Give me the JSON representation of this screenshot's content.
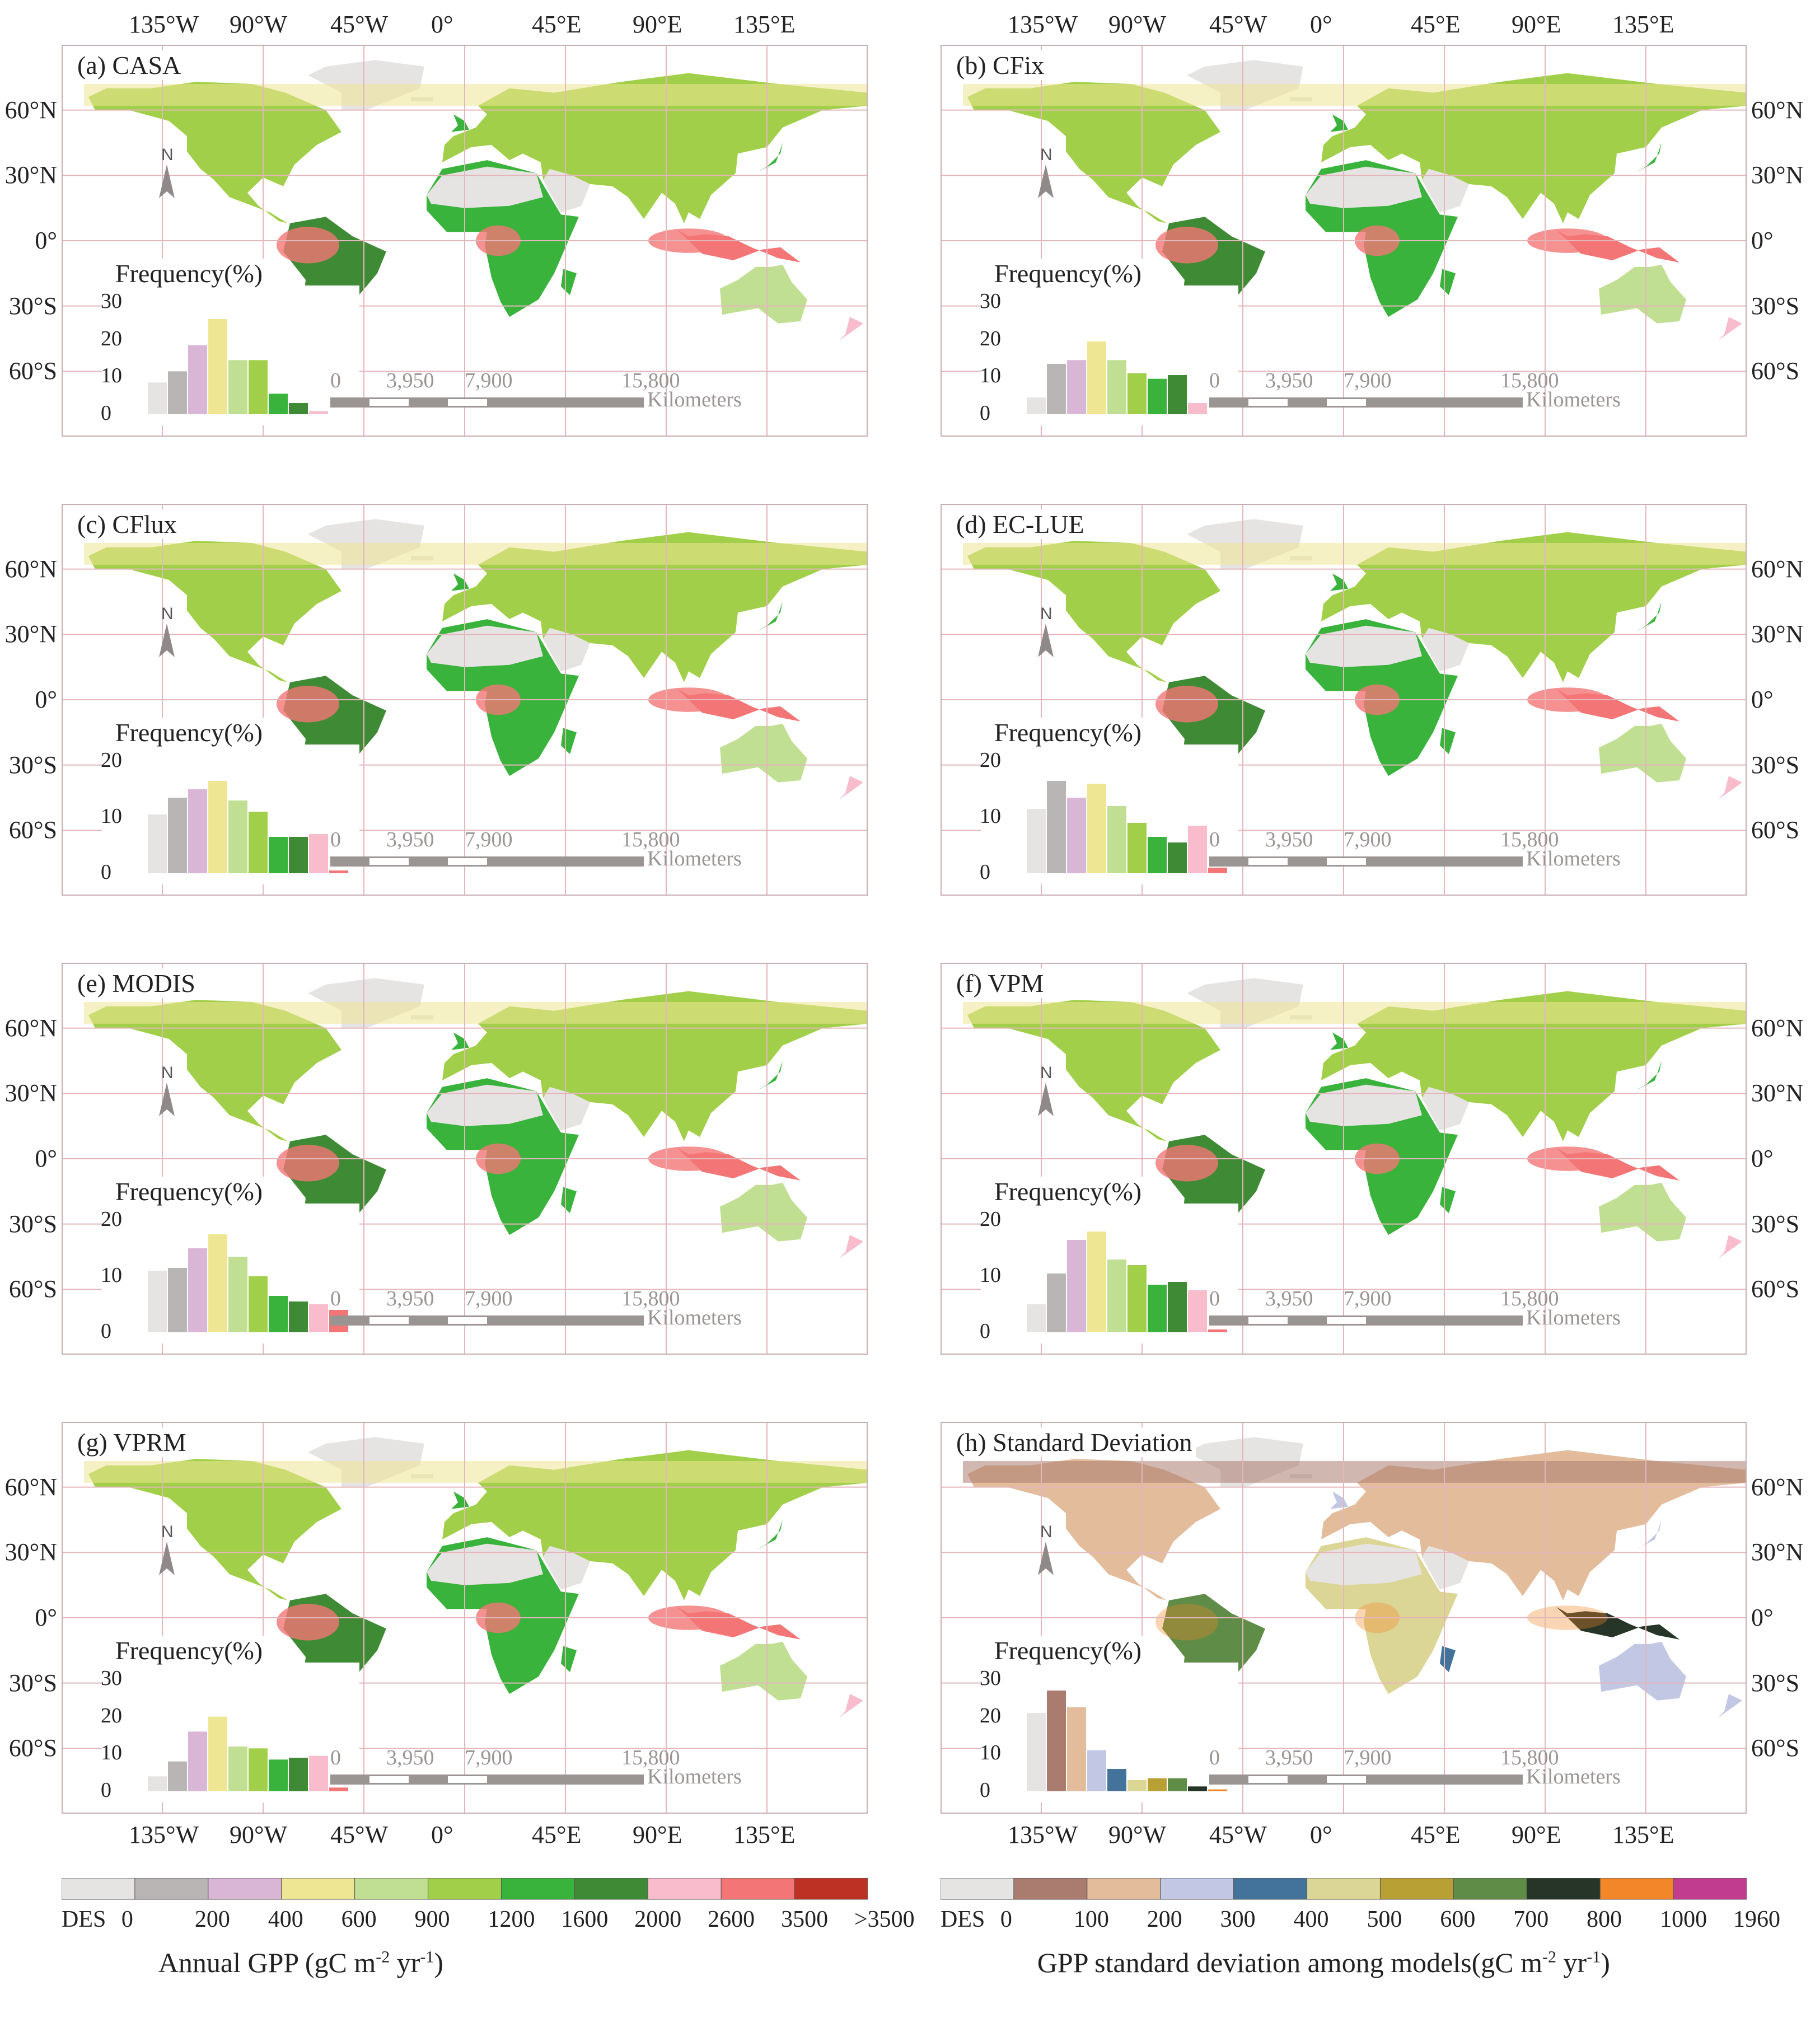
{
  "panels": [
    {
      "title": "(a) CASA",
      "side": "left",
      "freq_ticks": [
        "30",
        "20",
        "10",
        "0"
      ],
      "freq_max": 30,
      "freq": [
        8.5,
        11.5,
        18.5,
        25.5,
        14.5,
        14.5,
        5.5,
        3.0,
        0.8,
        0,
        0
      ],
      "color_scale": "gpp"
    },
    {
      "title": "(b) CFix",
      "side": "right",
      "freq_ticks": [
        "30",
        "20",
        "10",
        "0"
      ],
      "freq_max": 30,
      "freq": [
        4.5,
        13.5,
        14.5,
        19.5,
        14.5,
        11.0,
        9.5,
        10.5,
        3.0,
        0,
        0
      ],
      "color_scale": "gpp"
    },
    {
      "title": "(c) CFlux",
      "side": "left",
      "freq_ticks": [
        "20",
        "10",
        "0"
      ],
      "freq_max": 20,
      "freq": [
        10.5,
        13.5,
        15.0,
        16.5,
        13.0,
        11.0,
        6.5,
        6.5,
        7.0,
        0.5,
        0
      ],
      "color_scale": "gpp"
    },
    {
      "title": "(d) EC-LUE",
      "side": "right",
      "freq_ticks": [
        "20",
        "10",
        "0"
      ],
      "freq_max": 20,
      "freq": [
        11.5,
        16.5,
        13.5,
        16.0,
        12.0,
        9.0,
        6.5,
        5.5,
        8.5,
        1.0,
        0
      ],
      "color_scale": "gpp"
    },
    {
      "title": "(e) MODIS",
      "side": "left",
      "freq_ticks": [
        "20",
        "10",
        "0"
      ],
      "freq_max": 20,
      "freq": [
        11.0,
        11.5,
        15.0,
        17.5,
        13.5,
        10.0,
        6.5,
        5.5,
        5.0,
        4.0,
        0
      ],
      "color_scale": "gpp"
    },
    {
      "title": "(f) VPM",
      "side": "right",
      "freq_ticks": [
        "20",
        "10",
        "0"
      ],
      "freq_max": 20,
      "freq": [
        5.0,
        10.5,
        16.5,
        18.0,
        13.0,
        12.0,
        8.5,
        9.0,
        7.5,
        0.5,
        0
      ],
      "color_scale": "gpp"
    },
    {
      "title": "(g) VPRM",
      "side": "left",
      "freq_ticks": [
        "30",
        "20",
        "10",
        "0"
      ],
      "freq_max": 30,
      "freq": [
        4.0,
        8.0,
        16.0,
        20.0,
        12.0,
        11.5,
        8.5,
        9.0,
        9.5,
        1.0,
        0
      ],
      "color_scale": "gpp"
    },
    {
      "title": "(h) Standard Deviation",
      "side": "right",
      "freq_ticks": [
        "30",
        "20",
        "10",
        "0"
      ],
      "freq_max": 30,
      "freq": [
        21,
        27,
        22.5,
        11,
        6,
        3,
        3.5,
        3.5,
        1.3,
        0.5,
        0
      ],
      "color_scale": "sd"
    }
  ],
  "lat_labels": [
    "60°N",
    "30°N",
    "0°",
    "30°S",
    "60°S"
  ],
  "lon_labels_left": [
    "135°W",
    "90°W",
    "45°W",
    "0°",
    "45°E",
    "90°E",
    "135°E"
  ],
  "lon_labels_right": [
    "135°W",
    "90°W",
    "45°W",
    "0°",
    "45°E",
    "90°E",
    "135°E"
  ],
  "frequency_title": "Frequency(%)",
  "north_arrow_label": "N",
  "scale_bar": {
    "labels": [
      "0",
      "3,950",
      "7,900",
      "15,800"
    ],
    "unit": "Kilometers"
  },
  "colors": {
    "gpp": [
      "#e6e3e3",
      "#b9b5b4",
      "#d9b5d6",
      "#efe694",
      "#c0df92",
      "#a2cf4a",
      "#39b33c",
      "#3f8a35",
      "#f8bccc",
      "#f47575",
      "#bd3125"
    ],
    "sd": [
      "#e6e3e3",
      "#aa7b6f",
      "#e2bc9b",
      "#c2c8e4",
      "#43739a",
      "#dcd696",
      "#b9a035",
      "#5f8d47",
      "#273528",
      "#f28628",
      "#c13b8e"
    ],
    "grid": "#e3b6bb",
    "scale_bar_gray": "#9a9493"
  },
  "legend_gpp": {
    "labels": [
      "DES",
      "0",
      "200",
      "400",
      "600",
      "900",
      "1200",
      "1600",
      "2000",
      "2600",
      "3500",
      ">3500"
    ],
    "title": "Annual GPP (gC m",
    "title_sup1": "-2",
    "title_mid": " yr",
    "title_sup2": "-1",
    "title_end": ")"
  },
  "legend_sd": {
    "labels": [
      "DES",
      "0",
      "100",
      "200",
      "300",
      "400",
      "500",
      "600",
      "700",
      "800",
      "1000",
      "1960"
    ],
    "title": "GPP standard deviation among models(gC m",
    "title_sup1": "-2",
    "title_mid": " yr",
    "title_sup2": "-1",
    "title_end": ")"
  }
}
